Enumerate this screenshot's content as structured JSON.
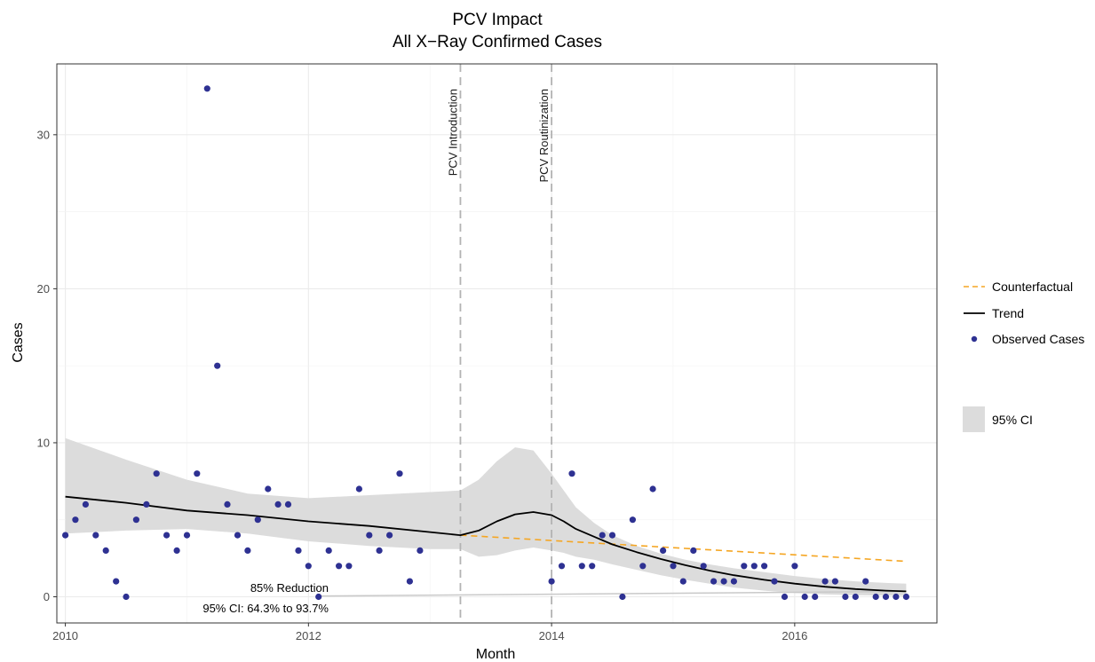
{
  "chart_data": {
    "type": "scatter",
    "title": "PCV Impact",
    "subtitle": "All X−Ray Confirmed Cases",
    "xlabel": "Month",
    "ylabel": "Cases",
    "xlim": [
      2009.93,
      2017.17
    ],
    "ylim": [
      -1.7,
      34.6
    ],
    "x_ticks": [
      2010,
      2012,
      2014,
      2016
    ],
    "x_tick_labels": [
      "2010",
      "2012",
      "2014",
      "2016"
    ],
    "y_ticks": [
      0,
      10,
      20,
      30
    ],
    "y_tick_labels": [
      "0",
      "10",
      "20",
      "30"
    ],
    "grid": true,
    "legend_position": "right",
    "vertical_lines": [
      {
        "x": 2013.25,
        "label": "PCV Introduction"
      },
      {
        "x": 2014.0,
        "label": "PCV Routinization"
      }
    ],
    "annotations": [
      "85% Reduction",
      "95% CI: 64.3% to 93.7%"
    ],
    "series": [
      {
        "name": "Observed Cases",
        "kind": "points",
        "color": "#2e3192",
        "x": [
          2010.0,
          2010.083,
          2010.167,
          2010.25,
          2010.333,
          2010.417,
          2010.5,
          2010.583,
          2010.667,
          2010.75,
          2010.833,
          2010.917,
          2011.0,
          2011.083,
          2011.167,
          2011.25,
          2011.333,
          2011.417,
          2011.5,
          2011.583,
          2011.667,
          2011.75,
          2011.833,
          2011.917,
          2012.0,
          2012.083,
          2012.167,
          2012.25,
          2012.333,
          2012.417,
          2012.5,
          2012.583,
          2012.667,
          2012.75,
          2012.833,
          2012.917,
          2014.0,
          2014.083,
          2014.167,
          2014.25,
          2014.333,
          2014.417,
          2014.5,
          2014.583,
          2014.667,
          2014.75,
          2014.833,
          2014.917,
          2015.0,
          2015.083,
          2015.167,
          2015.25,
          2015.333,
          2015.417,
          2015.5,
          2015.583,
          2015.667,
          2015.75,
          2015.833,
          2015.917,
          2016.0,
          2016.083,
          2016.167,
          2016.25,
          2016.333,
          2016.417,
          2016.5,
          2016.583,
          2016.667,
          2016.75,
          2016.833,
          2016.917
        ],
        "y": [
          4,
          5,
          6,
          4,
          3,
          1,
          0,
          5,
          6,
          8,
          4,
          3,
          4,
          8,
          33,
          15,
          6,
          4,
          3,
          5,
          7,
          6,
          6,
          3,
          2,
          0,
          3,
          2,
          2,
          7,
          4,
          3,
          4,
          8,
          1,
          3,
          1,
          2,
          8,
          2,
          2,
          4,
          4,
          0,
          5,
          2,
          7,
          3,
          2,
          1,
          3,
          2,
          1,
          1,
          1,
          2,
          2,
          2,
          1,
          0,
          2,
          0,
          0,
          1,
          1,
          0,
          0,
          1,
          0,
          0,
          0,
          0
        ]
      },
      {
        "name": "Trend",
        "kind": "line",
        "color": "#000000",
        "x": [
          2010.0,
          2010.5,
          2011.0,
          2011.5,
          2012.0,
          2012.5,
          2013.0,
          2013.25,
          2013.4,
          2013.55,
          2013.7,
          2013.85,
          2014.0,
          2014.1,
          2014.2,
          2014.35,
          2014.5,
          2014.7,
          2014.9,
          2015.1,
          2015.3,
          2015.5,
          2015.75,
          2016.0,
          2016.25,
          2016.5,
          2016.75,
          2016.917
        ],
        "y": [
          6.5,
          6.1,
          5.6,
          5.3,
          4.9,
          4.6,
          4.2,
          4.0,
          4.3,
          4.9,
          5.35,
          5.5,
          5.3,
          4.9,
          4.4,
          3.9,
          3.4,
          2.9,
          2.45,
          2.05,
          1.7,
          1.4,
          1.1,
          0.85,
          0.65,
          0.5,
          0.4,
          0.35
        ]
      },
      {
        "name": "Counterfactual",
        "kind": "dashed-line",
        "color": "#f5a623",
        "x": [
          2013.25,
          2016.917
        ],
        "y": [
          4.0,
          2.3
        ]
      },
      {
        "name": "95% CI",
        "kind": "band",
        "color": "#dcdcdc",
        "x": [
          2010.0,
          2010.5,
          2011.0,
          2011.5,
          2012.0,
          2012.5,
          2013.0,
          2013.25,
          2013.4,
          2013.55,
          2013.7,
          2013.85,
          2014.0,
          2014.1,
          2014.2,
          2014.35,
          2014.5,
          2014.7,
          2014.9,
          2015.1,
          2015.3,
          2015.5,
          2015.75,
          2016.0,
          2016.25,
          2016.5,
          2016.75,
          2016.917
        ],
        "lower": [
          4.1,
          4.3,
          4.4,
          4.1,
          3.6,
          3.3,
          3.1,
          3.1,
          2.6,
          2.7,
          3.0,
          3.2,
          3.0,
          2.85,
          2.6,
          2.4,
          2.1,
          1.75,
          1.4,
          1.1,
          0.85,
          0.6,
          0.4,
          0.25,
          0.15,
          0.1,
          0.08,
          0.05
        ],
        "upper": [
          10.3,
          8.9,
          7.6,
          6.7,
          6.4,
          6.6,
          6.8,
          6.9,
          7.6,
          8.8,
          9.7,
          9.5,
          8.0,
          6.9,
          5.8,
          4.8,
          4.0,
          3.3,
          2.8,
          2.4,
          2.1,
          1.85,
          1.6,
          1.35,
          1.15,
          1.0,
          0.9,
          0.85
        ]
      },
      {
        "name": "",
        "kind": "thin-line",
        "color": "#c9c9c9",
        "x": [
          2012.08,
          2016.917
        ],
        "y": [
          0.05,
          0.35
        ]
      }
    ],
    "legend": [
      {
        "label": "Counterfactual",
        "symbol": "dashed-line",
        "color": "#f5a623"
      },
      {
        "label": "Trend",
        "symbol": "line",
        "color": "#000000"
      },
      {
        "label": "Observed Cases",
        "symbol": "point",
        "color": "#2e3192"
      },
      {
        "label": "95% CI",
        "symbol": "band",
        "color": "#dcdcdc"
      }
    ]
  }
}
